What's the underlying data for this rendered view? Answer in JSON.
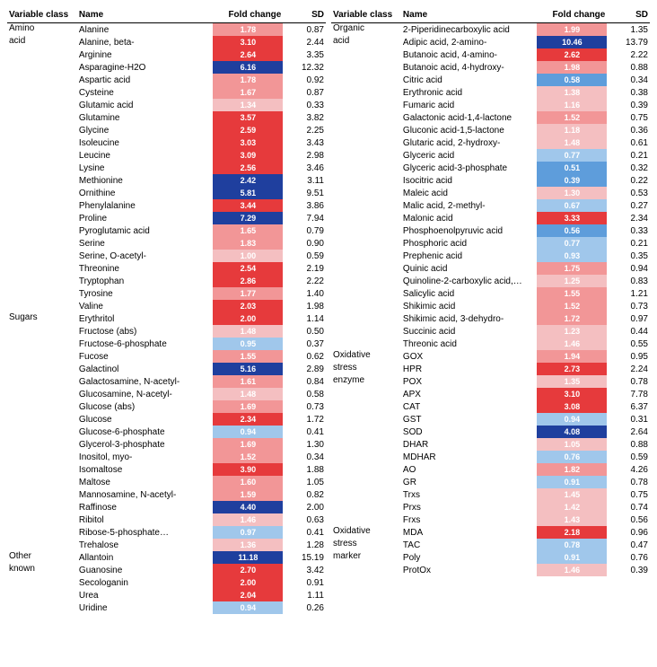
{
  "headers": {
    "class": "Variable class",
    "name": "Name",
    "fc": "Fold change",
    "sd": "SD"
  },
  "palette": {
    "darkblue": "#1f3f9e",
    "midblue": "#5e9ddb",
    "lightblue": "#a0c7eb",
    "palepink": "#f4bfc1",
    "pink": "#f29697",
    "red": "#e63a3c",
    "darkred": "#c11f1f"
  },
  "left": [
    {
      "cls": "Amino",
      "name": "Alanine",
      "fc": "1.78",
      "sd": "0.87",
      "bg": "pink"
    },
    {
      "cls": "acid",
      "name": "Alanine, beta-",
      "fc": "3.10",
      "sd": "2.44",
      "bg": "red"
    },
    {
      "cls": "",
      "name": "Arginine",
      "fc": "2.64",
      "sd": "3.35",
      "bg": "red"
    },
    {
      "cls": "",
      "name": "Asparagine-H2O",
      "fc": "6.16",
      "sd": "12.32",
      "bg": "darkblue"
    },
    {
      "cls": "",
      "name": "Aspartic acid",
      "fc": "1.78",
      "sd": "0.92",
      "bg": "pink"
    },
    {
      "cls": "",
      "name": "Cysteine",
      "fc": "1.67",
      "sd": "0.87",
      "bg": "pink"
    },
    {
      "cls": "",
      "name": "Glutamic acid",
      "fc": "1.34",
      "sd": "0.33",
      "bg": "palepink"
    },
    {
      "cls": "",
      "name": "Glutamine",
      "fc": "3.57",
      "sd": "3.82",
      "bg": "red"
    },
    {
      "cls": "",
      "name": "Glycine",
      "fc": "2.59",
      "sd": "2.25",
      "bg": "red"
    },
    {
      "cls": "",
      "name": "Isoleucine",
      "fc": "3.03",
      "sd": "3.43",
      "bg": "red"
    },
    {
      "cls": "",
      "name": "Leucine",
      "fc": "3.09",
      "sd": "2.98",
      "bg": "red"
    },
    {
      "cls": "",
      "name": "Lysine",
      "fc": "2.56",
      "sd": "3.46",
      "bg": "red"
    },
    {
      "cls": "",
      "name": "Methionine",
      "fc": "2.42",
      "sd": "3.11",
      "bg": "darkblue"
    },
    {
      "cls": "",
      "name": "Ornithine",
      "fc": "5.81",
      "sd": "9.51",
      "bg": "darkblue"
    },
    {
      "cls": "",
      "name": "Phenylalanine",
      "fc": "3.44",
      "sd": "3.86",
      "bg": "red"
    },
    {
      "cls": "",
      "name": "Proline",
      "fc": "7.29",
      "sd": "7.94",
      "bg": "darkblue"
    },
    {
      "cls": "",
      "name": "Pyroglutamic acid",
      "fc": "1.65",
      "sd": "0.79",
      "bg": "pink"
    },
    {
      "cls": "",
      "name": "Serine",
      "fc": "1.83",
      "sd": "0.90",
      "bg": "pink"
    },
    {
      "cls": "",
      "name": "Serine, O-acetyl-",
      "fc": "1.00",
      "sd": "0.59",
      "bg": "palepink"
    },
    {
      "cls": "",
      "name": "Threonine",
      "fc": "2.54",
      "sd": "2.19",
      "bg": "red"
    },
    {
      "cls": "",
      "name": "Tryptophan",
      "fc": "2.86",
      "sd": "2.22",
      "bg": "red"
    },
    {
      "cls": "",
      "name": "Tyrosine",
      "fc": "1.77",
      "sd": "1.40",
      "bg": "pink"
    },
    {
      "cls": "",
      "name": "Valine",
      "fc": "2.03",
      "sd": "1.98",
      "bg": "red"
    },
    {
      "cls": "Sugars",
      "name": "Erythritol",
      "fc": "2.00",
      "sd": "1.14",
      "bg": "red"
    },
    {
      "cls": "",
      "name": "Fructose (abs)",
      "fc": "1.48",
      "sd": "0.50",
      "bg": "palepink"
    },
    {
      "cls": "",
      "name": "Fructose-6-phosphate",
      "fc": "0.95",
      "sd": "0.37",
      "bg": "lightblue"
    },
    {
      "cls": "",
      "name": "Fucose",
      "fc": "1.55",
      "sd": "0.62",
      "bg": "pink"
    },
    {
      "cls": "",
      "name": "Galactinol",
      "fc": "5.16",
      "sd": "2.89",
      "bg": "darkblue"
    },
    {
      "cls": "",
      "name": "Galactosamine, N-acetyl-",
      "fc": "1.61",
      "sd": "0.84",
      "bg": "pink"
    },
    {
      "cls": "",
      "name": "Glucosamine, N-acetyl-",
      "fc": "1.48",
      "sd": "0.58",
      "bg": "palepink"
    },
    {
      "cls": "",
      "name": "Glucose (abs)",
      "fc": "1.69",
      "sd": "0.73",
      "bg": "pink"
    },
    {
      "cls": "",
      "name": "Glucose",
      "fc": "2.34",
      "sd": "1.72",
      "bg": "red"
    },
    {
      "cls": "",
      "name": "Glucose-6-phosphate",
      "fc": "0.94",
      "sd": "0.41",
      "bg": "lightblue"
    },
    {
      "cls": "",
      "name": "Glycerol-3-phosphate",
      "fc": "1.69",
      "sd": "1.30",
      "bg": "pink"
    },
    {
      "cls": "",
      "name": "Inositol, myo-",
      "fc": "1.52",
      "sd": "0.34",
      "bg": "pink"
    },
    {
      "cls": "",
      "name": "Isomaltose",
      "fc": "3.90",
      "sd": "1.88",
      "bg": "red"
    },
    {
      "cls": "",
      "name": "Maltose",
      "fc": "1.60",
      "sd": "1.05",
      "bg": "pink"
    },
    {
      "cls": "",
      "name": "Mannosamine, N-acetyl-",
      "fc": "1.59",
      "sd": "0.82",
      "bg": "pink"
    },
    {
      "cls": "",
      "name": "Raffinose",
      "fc": "4.40",
      "sd": "2.00",
      "bg": "darkblue"
    },
    {
      "cls": "",
      "name": "Ribitol",
      "fc": "1.46",
      "sd": "0.63",
      "bg": "palepink"
    },
    {
      "cls": "",
      "name": "Ribose-5-phosphate…",
      "fc": "0.97",
      "sd": "0.41",
      "bg": "lightblue"
    },
    {
      "cls": "",
      "name": "Trehalose",
      "fc": "1.36",
      "sd": "1.28",
      "bg": "palepink"
    },
    {
      "cls": "Other",
      "name": "Allantoin",
      "fc": "11.18",
      "sd": "15.19",
      "bg": "darkblue"
    },
    {
      "cls": "known",
      "name": "Guanosine",
      "fc": "2.70",
      "sd": "3.42",
      "bg": "red"
    },
    {
      "cls": "",
      "name": "Secologanin",
      "fc": "2.00",
      "sd": "0.91",
      "bg": "red"
    },
    {
      "cls": "",
      "name": "Urea",
      "fc": "2.04",
      "sd": "1.11",
      "bg": "red"
    },
    {
      "cls": "",
      "name": "Uridine",
      "fc": "0.94",
      "sd": "0.26",
      "bg": "lightblue"
    }
  ],
  "right": [
    {
      "cls": "Organic",
      "name": "2-Piperidinecarboxylic acid",
      "fc": "1.99",
      "sd": "1.35",
      "bg": "pink"
    },
    {
      "cls": "acid",
      "name": "Adipic acid, 2-amino-",
      "fc": "10.46",
      "sd": "13.79",
      "bg": "darkblue"
    },
    {
      "cls": "",
      "name": "Butanoic acid, 4-amino-",
      "fc": "2.62",
      "sd": "2.22",
      "bg": "red"
    },
    {
      "cls": "",
      "name": "Butanoic acid, 4-hydroxy-",
      "fc": "1.98",
      "sd": "0.88",
      "bg": "pink"
    },
    {
      "cls": "",
      "name": "Citric acid",
      "fc": "0.58",
      "sd": "0.34",
      "bg": "midblue"
    },
    {
      "cls": "",
      "name": "Erythronic acid",
      "fc": "1.38",
      "sd": "0.38",
      "bg": "palepink"
    },
    {
      "cls": "",
      "name": "Fumaric acid",
      "fc": "1.16",
      "sd": "0.39",
      "bg": "palepink"
    },
    {
      "cls": "",
      "name": "Galactonic acid-1,4-lactone",
      "fc": "1.52",
      "sd": "0.75",
      "bg": "pink"
    },
    {
      "cls": "",
      "name": "Gluconic acid-1,5-lactone",
      "fc": "1.18",
      "sd": "0.36",
      "bg": "palepink"
    },
    {
      "cls": "",
      "name": "Glutaric acid, 2-hydroxy-",
      "fc": "1.48",
      "sd": "0.61",
      "bg": "palepink"
    },
    {
      "cls": "",
      "name": "Glyceric acid",
      "fc": "0.77",
      "sd": "0.21",
      "bg": "lightblue"
    },
    {
      "cls": "",
      "name": "Glyceric acid-3-phosphate",
      "fc": "0.51",
      "sd": "0.32",
      "bg": "midblue"
    },
    {
      "cls": "",
      "name": "Isocitric acid",
      "fc": "0.39",
      "sd": "0.22",
      "bg": "midblue"
    },
    {
      "cls": "",
      "name": "Maleic acid",
      "fc": "1.30",
      "sd": "0.53",
      "bg": "palepink"
    },
    {
      "cls": "",
      "name": "Malic acid, 2-methyl-",
      "fc": "0.67",
      "sd": "0.27",
      "bg": "lightblue"
    },
    {
      "cls": "",
      "name": "Malonic acid",
      "fc": "3.33",
      "sd": "2.34",
      "bg": "red"
    },
    {
      "cls": "",
      "name": "Phosphoenolpyruvic acid",
      "fc": "0.56",
      "sd": "0.33",
      "bg": "midblue"
    },
    {
      "cls": "",
      "name": "Phosphoric acid",
      "fc": "0.77",
      "sd": "0.21",
      "bg": "lightblue"
    },
    {
      "cls": "",
      "name": "Prephenic acid",
      "fc": "0.93",
      "sd": "0.35",
      "bg": "lightblue"
    },
    {
      "cls": "",
      "name": "Quinic acid",
      "fc": "1.75",
      "sd": "0.94",
      "bg": "pink"
    },
    {
      "cls": "",
      "name": "Quinoline-2-carboxylic acid,…",
      "fc": "1.25",
      "sd": "0.83",
      "bg": "palepink"
    },
    {
      "cls": "",
      "name": "Salicylic acid",
      "fc": "1.55",
      "sd": "1.21",
      "bg": "pink"
    },
    {
      "cls": "",
      "name": "Shikimic acid",
      "fc": "1.52",
      "sd": "0.73",
      "bg": "pink"
    },
    {
      "cls": "",
      "name": "Shikimic acid, 3-dehydro-",
      "fc": "1.72",
      "sd": "0.97",
      "bg": "pink"
    },
    {
      "cls": "",
      "name": "Succinic acid",
      "fc": "1.23",
      "sd": "0.44",
      "bg": "palepink"
    },
    {
      "cls": "",
      "name": "Threonic acid",
      "fc": "1.46",
      "sd": "0.55",
      "bg": "palepink"
    },
    {
      "cls": "Oxidative",
      "name": "GOX",
      "fc": "1.94",
      "sd": "0.95",
      "bg": "pink"
    },
    {
      "cls": "stress",
      "name": "HPR",
      "fc": "2.73",
      "sd": "2.24",
      "bg": "red"
    },
    {
      "cls": "enzyme",
      "name": "POX",
      "fc": "1.35",
      "sd": "0.78",
      "bg": "palepink"
    },
    {
      "cls": "",
      "name": "APX",
      "fc": "3.10",
      "sd": "7.78",
      "bg": "red"
    },
    {
      "cls": "",
      "name": "CAT",
      "fc": "3.08",
      "sd": "6.37",
      "bg": "red"
    },
    {
      "cls": "",
      "name": "GST",
      "fc": "0.94",
      "sd": "0.31",
      "bg": "lightblue"
    },
    {
      "cls": "",
      "name": "SOD",
      "fc": "4.08",
      "sd": "2.64",
      "bg": "darkblue"
    },
    {
      "cls": "",
      "name": "DHAR",
      "fc": "1.05",
      "sd": "0.88",
      "bg": "palepink"
    },
    {
      "cls": "",
      "name": "MDHAR",
      "fc": "0.76",
      "sd": "0.59",
      "bg": "lightblue"
    },
    {
      "cls": "",
      "name": "AO",
      "fc": "1.82",
      "sd": "4.26",
      "bg": "pink"
    },
    {
      "cls": "",
      "name": "GR",
      "fc": "0.91",
      "sd": "0.78",
      "bg": "lightblue"
    },
    {
      "cls": "",
      "name": "Trxs",
      "fc": "1.45",
      "sd": "0.75",
      "bg": "palepink"
    },
    {
      "cls": "",
      "name": "Prxs",
      "fc": "1.42",
      "sd": "0.74",
      "bg": "palepink"
    },
    {
      "cls": "",
      "name": "Frxs",
      "fc": "1.43",
      "sd": "0.56",
      "bg": "palepink"
    },
    {
      "cls": "Oxidative",
      "name": "MDA",
      "fc": "2.18",
      "sd": "0.96",
      "bg": "red"
    },
    {
      "cls": "stress",
      "name": "TAC",
      "fc": "0.78",
      "sd": "0.47",
      "bg": "lightblue"
    },
    {
      "cls": "marker",
      "name": "Poly",
      "fc": "0.91",
      "sd": "0.76",
      "bg": "lightblue"
    },
    {
      "cls": "",
      "name": "ProtOx",
      "fc": "1.46",
      "sd": "0.39",
      "bg": "palepink"
    }
  ]
}
